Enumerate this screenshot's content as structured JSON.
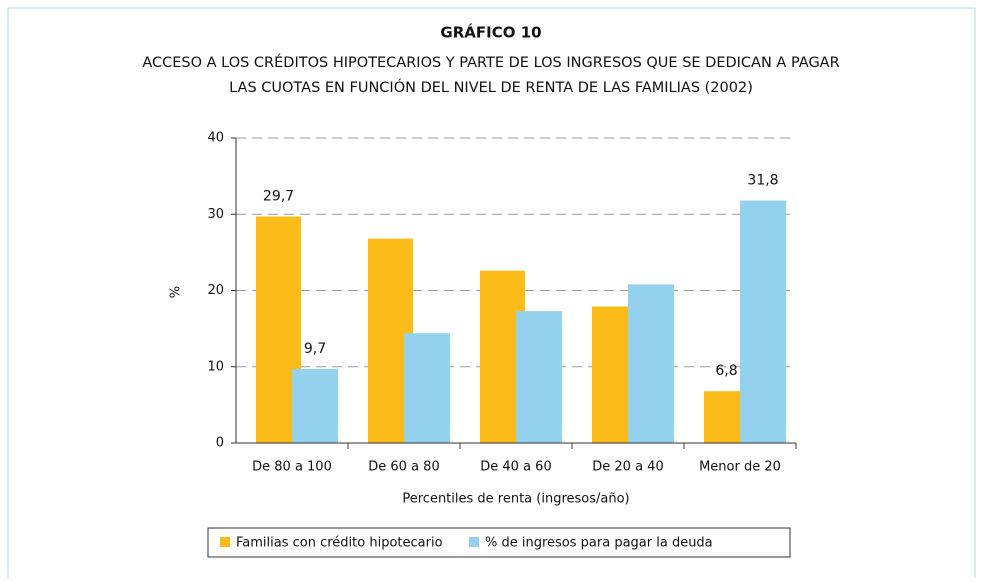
{
  "chart_data": {
    "type": "bar",
    "title": "GRÁFICO 10",
    "subtitle": [
      "ACCESO A LOS CRÉDITOS HIPOTECARIOS Y PARTE DE LOS INGRESOS QUE SE DEDICAN A PAGAR",
      "LAS CUOTAS EN FUNCIÓN DEL NIVEL DE RENTA DE LAS FAMILIAS (2002)"
    ],
    "y_label": "%",
    "x_label": "Percentiles de renta (ingresos/año)",
    "categories": [
      "De 80 a 100",
      "De 60 a 80",
      "De 40 a 60",
      "De 20 a 40",
      "Menor de 20"
    ],
    "series": [
      {
        "name": "Familias con crédito hipotecario",
        "color": "#fbbc19",
        "values": [
          29.7,
          26.8,
          22.6,
          17.9,
          6.8
        ],
        "value_labels": [
          "29,7",
          null,
          null,
          null,
          "6,8"
        ]
      },
      {
        "name": "% de ingresos para pagar la deuda",
        "color": "#93d1ed",
        "values": [
          9.7,
          14.4,
          17.3,
          20.8,
          31.8
        ],
        "value_labels": [
          "9,7",
          null,
          null,
          null,
          "31,8"
        ]
      }
    ],
    "ylim": [
      0,
      40
    ],
    "yticks": [
      0,
      10,
      20,
      30,
      40
    ],
    "grid": true,
    "legend": "bottom"
  }
}
